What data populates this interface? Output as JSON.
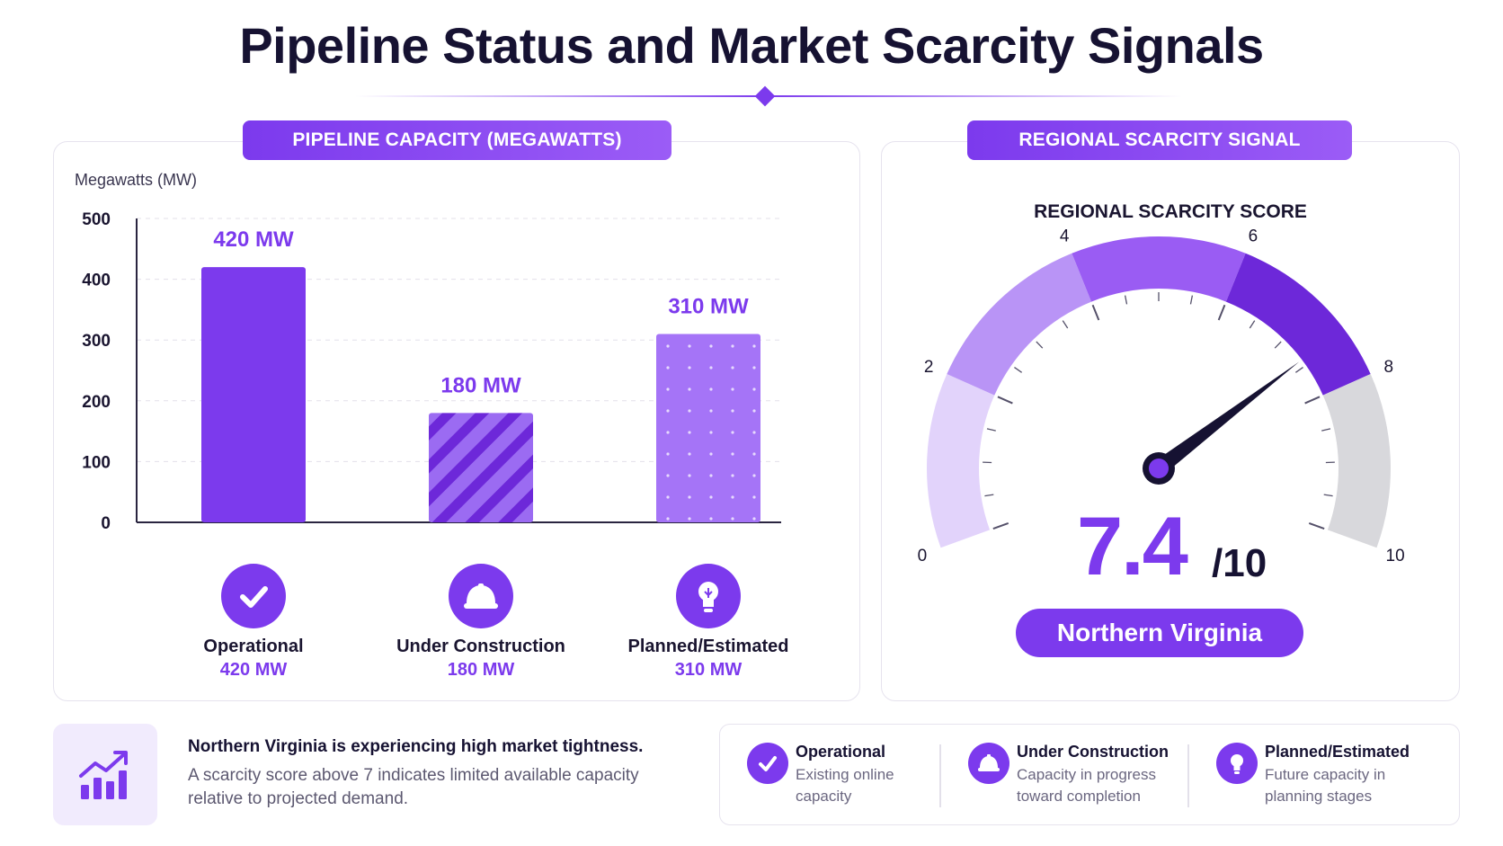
{
  "title": "Pipeline Status and Market Scarcity Signals",
  "left_panel": {
    "header": "PIPELINE CAPACITY (MEGAWATTS)"
  },
  "right_panel": {
    "header": "REGIONAL SCARCITY SIGNAL",
    "gauge_title": "REGIONAL SCARCITY SCORE",
    "score": "7.4",
    "score_max": "/10",
    "region": "Northern Virginia"
  },
  "chart_data": [
    {
      "type": "bar",
      "ylabel": "Megawatts (MW)",
      "ylim": [
        0,
        500
      ],
      "yticks": [
        "0",
        "100",
        "200",
        "300",
        "400",
        "500"
      ],
      "categories": [
        "Operational",
        "Under Construction",
        "Planned/Estimated"
      ],
      "values": [
        420,
        180,
        310
      ],
      "data_labels": [
        "420 MW",
        "180 MW",
        "310 MW"
      ],
      "category_values": [
        "420 MW",
        "180 MW",
        "310 MW"
      ],
      "bar_styles": [
        "solid",
        "striped",
        "dotted"
      ],
      "grid": true
    },
    {
      "type": "gauge",
      "value": 7.4,
      "range": [
        0,
        10
      ],
      "tick_labels": [
        "0",
        "2",
        "4",
        "6",
        "8",
        "10"
      ]
    }
  ],
  "categories_icons": [
    "check-icon",
    "hard-hat-icon",
    "lightbulb-icon"
  ],
  "note": {
    "headline": "Northern Virginia is experiencing high market tightness.",
    "body": "A scarcity score above 7 indicates limited available capacity relative to projected demand.",
    "icon": "growth-chart-icon"
  },
  "legend": [
    {
      "title": "Operational",
      "desc": "Existing online capacity",
      "icon": "check-icon"
    },
    {
      "title": "Under Construction",
      "desc": "Capacity in progress toward completion",
      "icon": "hard-hat-icon"
    },
    {
      "title": "Planned/Estimated",
      "desc": "Future capacity in planning stages",
      "icon": "lightbulb-icon"
    }
  ],
  "colors": {
    "accent": "#7c3aed",
    "accent_light": "#a574f7",
    "dark": "#161232",
    "gauge_segments": [
      "#e2d3fb",
      "#b994f6",
      "#9a5cf3",
      "#6d28d9",
      "#d8d8dc"
    ]
  }
}
